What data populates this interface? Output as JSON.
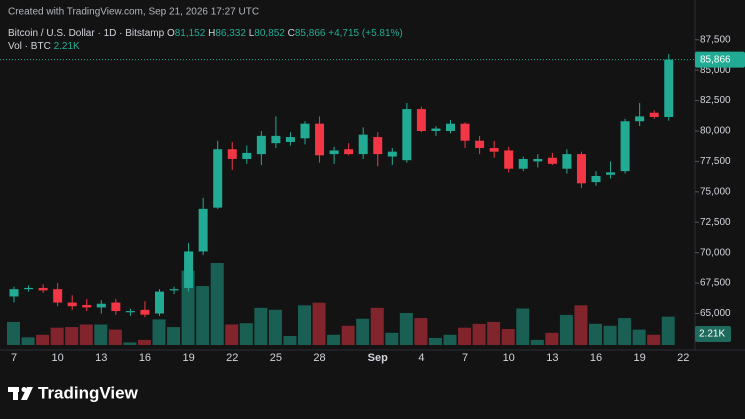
{
  "chart_data": {
    "type": "candlestick",
    "watermark": "Created with TradingView.com, Sep 21, 2026 17:27 UTC",
    "legend": {
      "symbol": "Bitcoin / U.S. Dollar · 1D · Bitstamp",
      "o": "O",
      "open": "81,152",
      "h": "H",
      "high": "86,332",
      "l": "L",
      "low": "80,852",
      "c": "C",
      "close": "85,866",
      "change": "+4,715 (+5.81%)"
    },
    "volume_legend": "Vol · BTC",
    "last_volume_label": "2.21K",
    "last_price_label": "85,866",
    "brand": "TradingView",
    "up_color": "#22ab94",
    "down_color": "#f23645",
    "grid": false,
    "categories": [
      "7",
      null,
      null,
      "10",
      null,
      null,
      "13",
      null,
      null,
      "16",
      null,
      null,
      "19",
      null,
      null,
      "22",
      null,
      null,
      "25",
      null,
      null,
      "28",
      null,
      null,
      null,
      "Sep",
      null,
      null,
      "4",
      null,
      null,
      "7",
      null,
      null,
      "10",
      null,
      null,
      "13",
      null,
      null,
      "16",
      null,
      null,
      "19",
      null,
      null,
      "22"
    ],
    "open": [
      66400,
      67000,
      67100,
      67000,
      65900,
      65700,
      65500,
      65900,
      65100,
      65300,
      65000,
      66900,
      67100,
      70100,
      73700,
      78500,
      77700,
      78100,
      79000,
      79100,
      79400,
      80600,
      78100,
      78500,
      78100,
      79500,
      77900,
      77600,
      81800,
      80000,
      80000,
      80600,
      79200,
      78600,
      78400,
      76900,
      77500,
      77800,
      76900,
      78100,
      75800,
      76400,
      76700,
      80800,
      81500,
      81152,
      null
    ],
    "high": [
      67200,
      67300,
      67400,
      67500,
      66500,
      66200,
      66100,
      66200,
      65400,
      66000,
      67000,
      67200,
      70800,
      74500,
      79200,
      79100,
      78800,
      80000,
      81200,
      79900,
      80800,
      81200,
      78700,
      79000,
      80300,
      79900,
      78600,
      82300,
      82000,
      80400,
      80900,
      80700,
      79600,
      79200,
      78700,
      77900,
      78100,
      78200,
      78500,
      78300,
      76700,
      77500,
      81000,
      82300,
      81700,
      86332,
      null
    ],
    "low": [
      65900,
      66800,
      66700,
      65600,
      65300,
      65200,
      65000,
      64900,
      64800,
      64700,
      64800,
      66600,
      66800,
      69800,
      73600,
      76800,
      77300,
      77200,
      78600,
      78800,
      78900,
      77400,
      77300,
      78000,
      77700,
      77100,
      77200,
      77400,
      79900,
      79600,
      79800,
      78600,
      78100,
      77800,
      76600,
      76700,
      77000,
      77200,
      76500,
      75300,
      75500,
      76100,
      76500,
      80400,
      81000,
      80852,
      null
    ],
    "close": [
      67000,
      67100,
      66900,
      65900,
      65600,
      65500,
      65800,
      65200,
      65200,
      64900,
      66800,
      67000,
      70100,
      73600,
      78500,
      77700,
      78200,
      79600,
      79600,
      79500,
      80600,
      78000,
      78400,
      78100,
      79700,
      78100,
      78300,
      81800,
      80000,
      80200,
      80600,
      79200,
      78600,
      78300,
      76900,
      77700,
      77700,
      77300,
      78100,
      75700,
      76300,
      76600,
      80800,
      81200,
      81151,
      85866,
      null
    ],
    "volume": [
      1800,
      600,
      800,
      1350,
      1400,
      1600,
      1600,
      1200,
      200,
      400,
      2000,
      1400,
      5800,
      4600,
      6400,
      1600,
      1700,
      2900,
      2750,
      700,
      3100,
      3300,
      800,
      1500,
      2050,
      2900,
      950,
      2500,
      2100,
      550,
      800,
      1350,
      1650,
      1800,
      1250,
      2850,
      400,
      950,
      2350,
      3100,
      1650,
      1500,
      2100,
      1200,
      800,
      2210,
      null
    ],
    "ylim": [
      62000,
      88300
    ],
    "yticks": [
      {
        "value": 65000,
        "label": "65,000"
      },
      {
        "value": 67500,
        "label": "67,500"
      },
      {
        "value": 70000,
        "label": "70,000"
      },
      {
        "value": 72500,
        "label": "72,500"
      },
      {
        "value": 75000,
        "label": "75,000"
      },
      {
        "value": 77500,
        "label": "77,500"
      },
      {
        "value": 80000,
        "label": "80,000"
      },
      {
        "value": 82500,
        "label": "82,500"
      },
      {
        "value": 85000,
        "label": "85,000"
      },
      {
        "value": 87500,
        "label": "87,500"
      }
    ]
  }
}
